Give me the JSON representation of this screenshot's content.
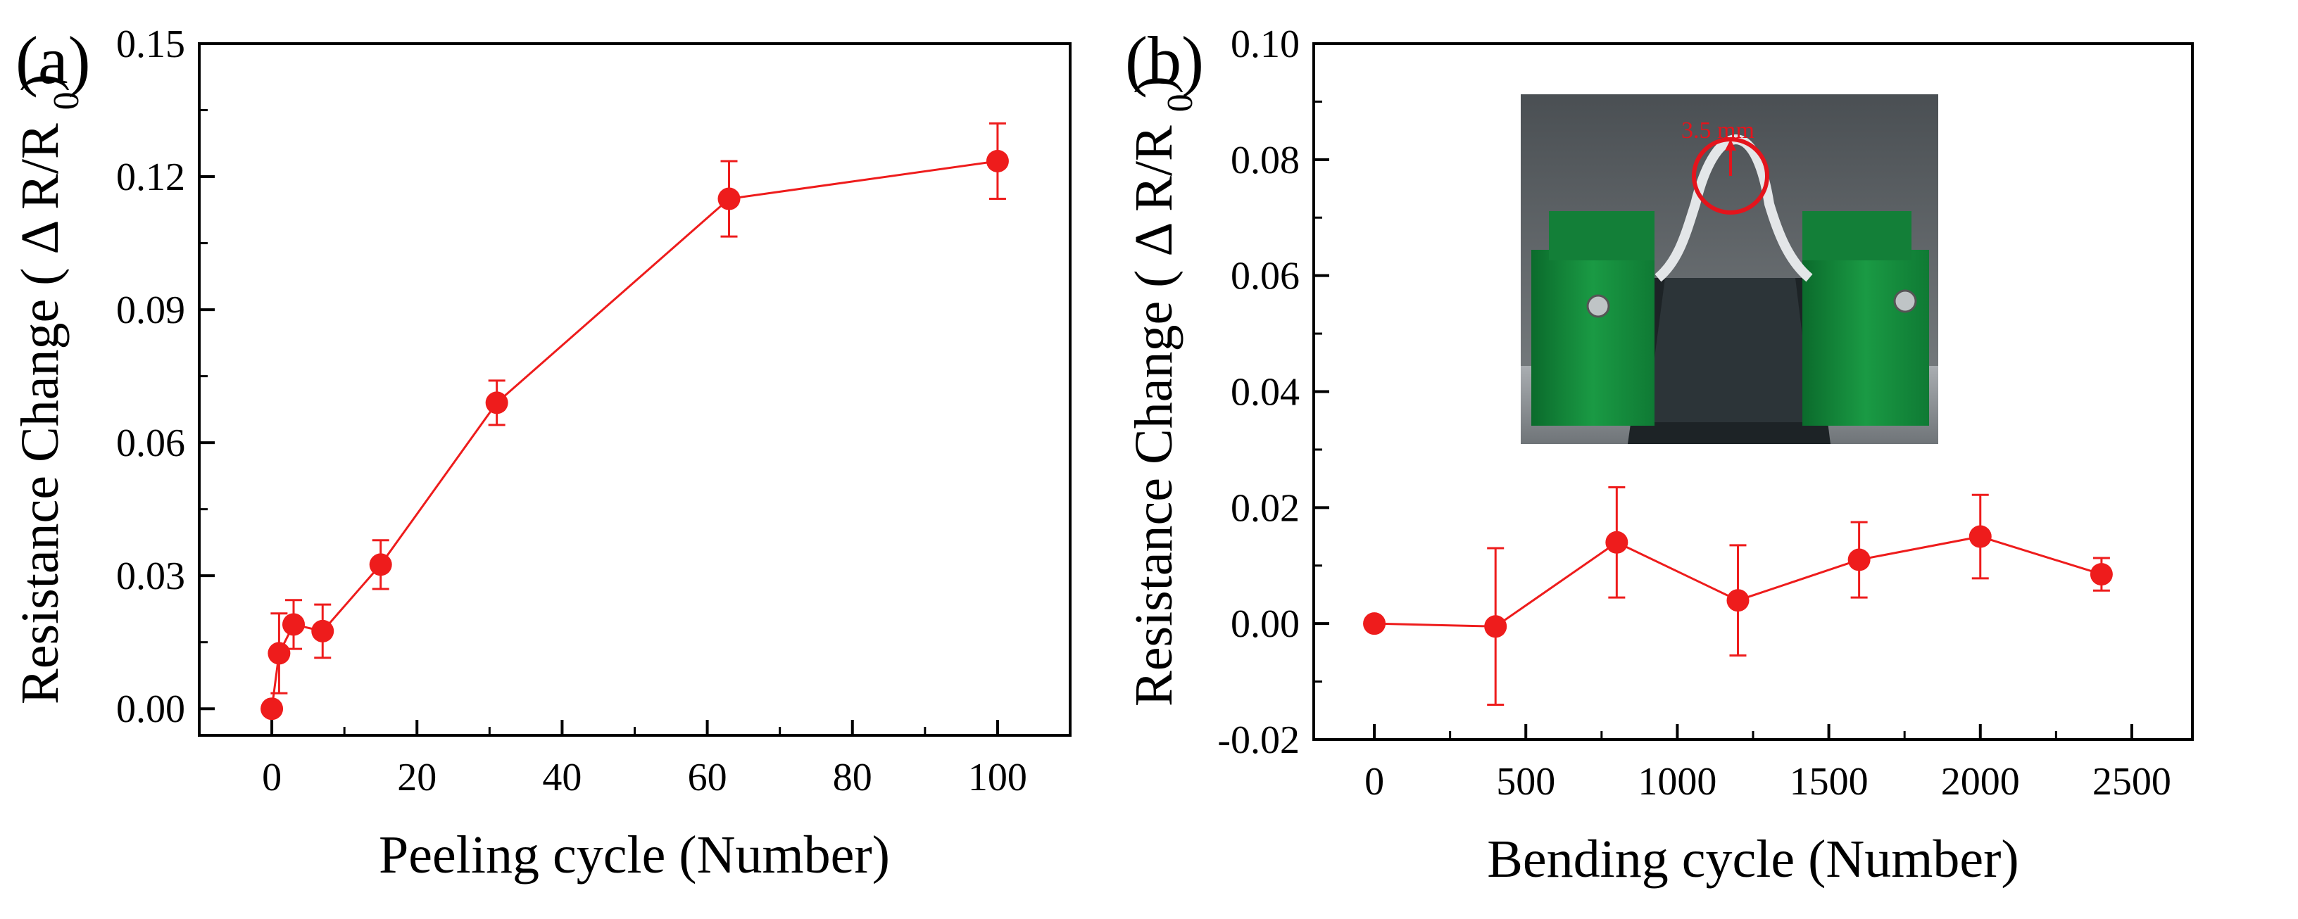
{
  "chart_data": [
    {
      "type": "scatter",
      "panel_label": "(a)",
      "xlabel": "Peeling cycle (Number)",
      "ylabel": "Resistance Change ( Δ R/R0)",
      "xlim": [
        -10,
        110
      ],
      "ylim": [
        -0.006,
        0.15
      ],
      "xticks": [
        0,
        20,
        40,
        60,
        80,
        100
      ],
      "yticks": [
        "0.00",
        "0.03",
        "0.06",
        "0.09",
        "0.12",
        "0.15"
      ],
      "series": [
        {
          "points": [
            {
              "x": 0,
              "y": 0.0,
              "err": 0.0
            },
            {
              "x": 1,
              "y": 0.0125,
              "err": 0.009
            },
            {
              "x": 3,
              "y": 0.019,
              "err": 0.0055
            },
            {
              "x": 7,
              "y": 0.0175,
              "err": 0.006
            },
            {
              "x": 15,
              "y": 0.0325,
              "err": 0.0055
            },
            {
              "x": 31,
              "y": 0.069,
              "err": 0.005
            },
            {
              "x": 63,
              "y": 0.115,
              "err": 0.0085
            },
            {
              "x": 100,
              "y": 0.1235,
              "err": 0.0085
            }
          ],
          "color": "#ee1c1c"
        }
      ]
    },
    {
      "type": "scatter",
      "panel_label": "(b)",
      "xlabel": "Bending cycle (Number)",
      "ylabel": "Resistance Change ( Δ R/R0)",
      "xlim": [
        -200,
        2700
      ],
      "ylim": [
        -0.02,
        0.1
      ],
      "xticks": [
        0,
        500,
        1000,
        1500,
        2000,
        2500
      ],
      "yticks": [
        "-0.02",
        "0.00",
        "0.02",
        "0.04",
        "0.06",
        "0.08",
        "0.10"
      ],
      "inset_annotation": "3.5 mm",
      "series": [
        {
          "points": [
            {
              "x": 0,
              "y": 0.0,
              "err": 0.0
            },
            {
              "x": 400,
              "y": -0.0005,
              "err": 0.0135
            },
            {
              "x": 800,
              "y": 0.014,
              "err": 0.0095
            },
            {
              "x": 1200,
              "y": 0.004,
              "err": 0.0095
            },
            {
              "x": 1600,
              "y": 0.011,
              "err": 0.0065
            },
            {
              "x": 2000,
              "y": 0.015,
              "err": 0.0072
            },
            {
              "x": 2400,
              "y": 0.0085,
              "err": 0.0028
            }
          ],
          "color": "#ee1c1c"
        }
      ]
    }
  ]
}
